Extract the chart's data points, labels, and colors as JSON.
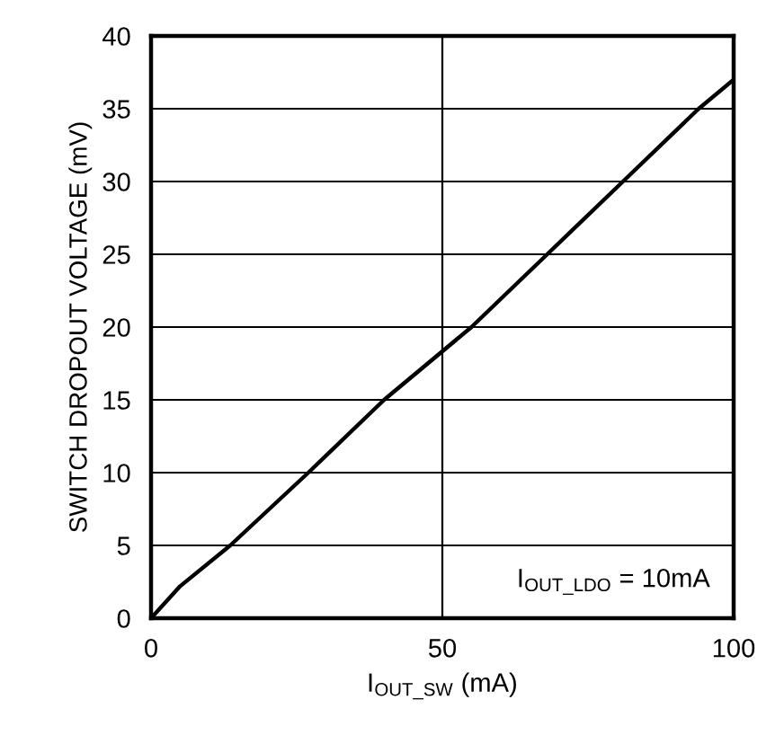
{
  "chart_data": {
    "type": "line",
    "xlabel": "I$_{OUT_SW}$ (mA)",
    "ylabel": "SWITCH DROPOUT VOLTAGE (mV)",
    "annotations": [
      "I$_{OUT_LDO}$ = 10mA"
    ],
    "series": [
      {
        "color": "#000000",
        "x": [
          0,
          5,
          13.6,
          27,
          40,
          55,
          68,
          81,
          94,
          100
        ],
        "values": [
          0,
          2.2,
          5,
          10,
          15,
          20,
          25,
          30,
          35,
          37
        ]
      }
    ],
    "xlim": [
      0,
      100
    ],
    "xticks": [
      0,
      50,
      100
    ],
    "ylim": [
      0,
      40
    ],
    "yticks": [
      0,
      5,
      10,
      15,
      20,
      25,
      30,
      35,
      40
    ],
    "grid": true,
    "marker": "none",
    "line_style": "solid"
  }
}
